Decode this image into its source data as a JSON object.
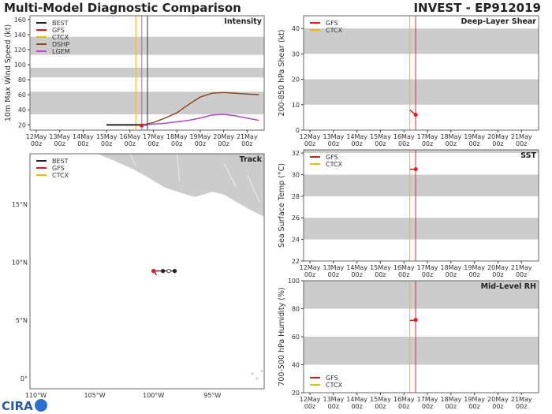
{
  "header": {
    "left_title": "Multi-Model Diagnostic Comparison",
    "right_title": "INVEST - EP912019"
  },
  "logo_text": "CIRA",
  "colors": {
    "BEST": "#222222",
    "GFS": "#e8141b",
    "CTCX": "#f2b600",
    "DSHP": "#8b4a1f",
    "LGEM": "#a64dbf",
    "band": "#cccccc"
  },
  "chart_data": [
    {
      "id": "intensity",
      "type": "line",
      "title": "Intensity",
      "ylabel": "10m Max Wind Speed (kt)",
      "xlim": [
        "11May 17z",
        "21May 17z"
      ],
      "ylim": [
        13,
        165
      ],
      "yticks": [
        20,
        40,
        60,
        80,
        100,
        120,
        140,
        160
      ],
      "xticks": [
        "12May 00z",
        "13May 00z",
        "14May 00z",
        "15May 00z",
        "16May 00z",
        "17May 00z",
        "18May 00z",
        "19May 00z",
        "20May 00z",
        "21May 00z"
      ],
      "bands": [
        [
          34,
          64
        ],
        [
          83,
          96
        ],
        [
          113,
          137
        ]
      ],
      "vlines": [
        {
          "series": "CTCX",
          "x": 16.25
        },
        {
          "series": "LGEM",
          "x": 16.5
        },
        {
          "series": "BEST",
          "x": 16.75
        }
      ],
      "legend": {
        "placement": "top-left",
        "entries": [
          "BEST",
          "GFS",
          "CTCX",
          "DSHP",
          "LGEM"
        ]
      },
      "series": [
        {
          "name": "BEST",
          "x": [
            15,
            15.5,
            16,
            16.5,
            16.75
          ],
          "y": [
            20,
            20,
            20,
            20,
            20
          ]
        },
        {
          "name": "DSHP",
          "x": [
            16.5,
            17,
            17.5,
            18,
            18.5,
            19,
            19.5,
            20,
            20.5,
            21,
            21.5
          ],
          "y": [
            20,
            23,
            29,
            36,
            47,
            57,
            62,
            63,
            62,
            61,
            60
          ]
        },
        {
          "name": "LGEM",
          "x": [
            16.5,
            17,
            17.5,
            18,
            18.5,
            19,
            19.5,
            20,
            20.5,
            21,
            21.5
          ],
          "y": [
            20,
            21,
            22,
            24,
            26,
            29,
            33,
            34,
            32,
            29,
            26
          ]
        },
        {
          "name": "GFS",
          "x": [
            16.5
          ],
          "y": [
            19
          ]
        }
      ]
    },
    {
      "id": "shear",
      "type": "line",
      "title": "Deep-Layer Shear",
      "ylabel": "200-850 hPa Shear (kt)",
      "ylim": [
        0,
        45
      ],
      "yticks": [
        0,
        10,
        20,
        30,
        40
      ],
      "xticks": [
        "12May 00z",
        "13May 00z",
        "14May 00z",
        "15May 00z",
        "16May 00z",
        "17May 00z",
        "18May 00z",
        "19May 00z",
        "20May 00z",
        "21May 00z"
      ],
      "bands": [
        [
          10,
          20
        ],
        [
          30,
          40
        ]
      ],
      "vlines": [
        {
          "series": "CTCX",
          "x": 16.25
        },
        {
          "series": "GFS",
          "x": 16.5
        }
      ],
      "legend": {
        "placement": "top-left",
        "entries": [
          "GFS",
          "CTCX"
        ]
      },
      "series": [
        {
          "name": "GFS",
          "x": [
            16.25,
            16.5
          ],
          "y": [
            8,
            6
          ]
        }
      ]
    },
    {
      "id": "sst",
      "type": "line",
      "title": "SST",
      "ylabel": "Sea Surface Temp (°C)",
      "ylim": [
        22,
        32.3
      ],
      "yticks": [
        22,
        24,
        26,
        28,
        30,
        32
      ],
      "xticks": [
        "12May 00z",
        "13May 00z",
        "14May 00z",
        "15May 00z",
        "16May 00z",
        "17May 00z",
        "18May 00z",
        "19May 00z",
        "20May 00z",
        "21May 00z"
      ],
      "bands": [
        [
          24,
          26
        ],
        [
          28,
          30
        ],
        [
          32,
          33
        ]
      ],
      "vlines": [
        {
          "series": "CTCX",
          "x": 16.25
        },
        {
          "series": "GFS",
          "x": 16.5
        }
      ],
      "legend": {
        "placement": "top-left",
        "entries": [
          "GFS",
          "CTCX"
        ]
      },
      "series": [
        {
          "name": "GFS",
          "x": [
            16.25,
            16.5
          ],
          "y": [
            30.5,
            30.5
          ]
        }
      ]
    },
    {
      "id": "rh",
      "type": "line",
      "title": "Mid-Level RH",
      "ylabel": "700-500 hPa Humidity (%)",
      "ylim": [
        20,
        100
      ],
      "yticks": [
        20,
        40,
        60,
        80,
        100
      ],
      "xticks": [
        "12May 00z",
        "13May 00z",
        "14May 00z",
        "15May 00z",
        "16May 00z",
        "17May 00z",
        "18May 00z",
        "19May 00z",
        "20May 00z",
        "21May 00z"
      ],
      "bands": [
        [
          40,
          60
        ],
        [
          80,
          100
        ]
      ],
      "vlines": [
        {
          "series": "CTCX",
          "x": 16.25
        },
        {
          "series": "GFS",
          "x": 16.5
        }
      ],
      "legend": {
        "placement": "bottom-left",
        "entries": [
          "GFS",
          "CTCX"
        ]
      },
      "series": [
        {
          "name": "GFS",
          "x": [
            16.25,
            16.5
          ],
          "y": [
            71.5,
            72
          ]
        }
      ]
    },
    {
      "id": "track",
      "type": "scatter",
      "title": "Track",
      "xlim": [
        -110.5,
        -90.6
      ],
      "ylim": [
        -0.9,
        19.35
      ],
      "xticks": [
        {
          "v": -110,
          "label": "110°W"
        },
        {
          "v": -105,
          "label": "105°W"
        },
        {
          "v": -100,
          "label": "100°W"
        },
        {
          "v": -95,
          "label": "95°W"
        }
      ],
      "yticks": [
        {
          "v": 0,
          "label": "0°"
        },
        {
          "v": 5,
          "label": "5°N"
        },
        {
          "v": 10,
          "label": "10°N"
        },
        {
          "v": 15,
          "label": "15°N"
        }
      ],
      "legend": {
        "placement": "top-left",
        "entries": [
          "BEST",
          "GFS",
          "CTCX"
        ]
      },
      "best_track": {
        "lon": [
          -100.0,
          -99.2,
          -98.7,
          -98.2
        ],
        "lat": [
          9.25,
          9.25,
          9.25,
          9.25
        ],
        "open": [
          false,
          false,
          true,
          false
        ]
      },
      "gfs_track": {
        "lon": [
          -100.0,
          -99.75
        ],
        "lat": [
          9.25,
          8.9
        ]
      }
    }
  ]
}
